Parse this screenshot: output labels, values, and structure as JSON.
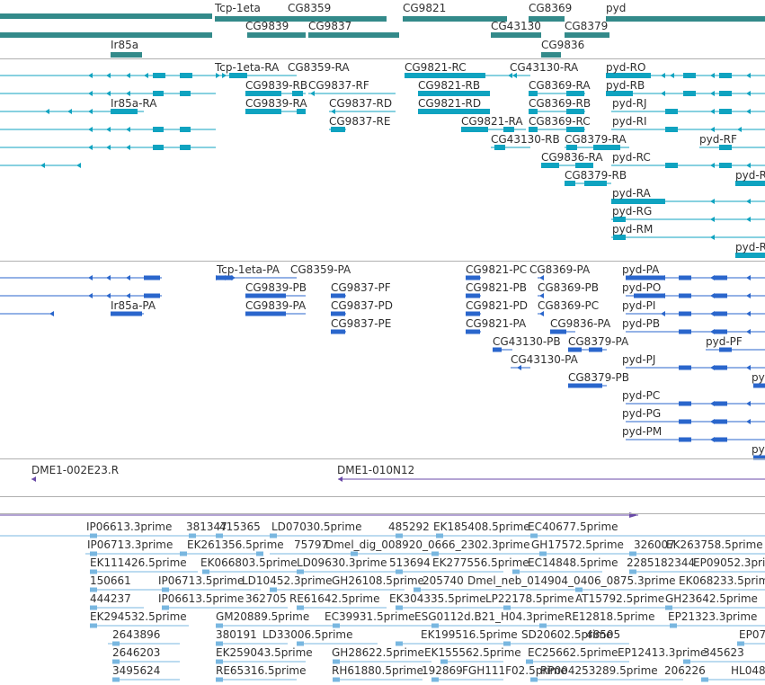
{
  "colors": {
    "gene_bar": "#338a8a",
    "transcript": "#0fa3c0",
    "protein": "#2a66cc",
    "clone": "#6a4aa8",
    "est": "#79b7e0",
    "separator": "#b0b0b0",
    "text": "#303030"
  },
  "genes": [
    {
      "name": "Tcp-1eta"
    },
    {
      "name": "CG8359"
    },
    {
      "name": "CG9821"
    },
    {
      "name": "CG8369"
    },
    {
      "name": "pyd"
    },
    {
      "name": "CG9839"
    },
    {
      "name": "CG9837"
    },
    {
      "name": "CG43130"
    },
    {
      "name": "CG8379"
    },
    {
      "name": "Ir85a"
    },
    {
      "name": "CG9836"
    }
  ],
  "transcripts": [
    {
      "name": "Tcp-1eta-RA"
    },
    {
      "name": "CG8359-RA"
    },
    {
      "name": "CG9821-RC"
    },
    {
      "name": "CG43130-RA"
    },
    {
      "name": "pyd-RO"
    },
    {
      "name": "CG9839-RB"
    },
    {
      "name": "CG9837-RF"
    },
    {
      "name": "CG9821-RB"
    },
    {
      "name": "CG8369-RA"
    },
    {
      "name": "pyd-RB"
    },
    {
      "name": "Ir85a-RA"
    },
    {
      "name": "CG9839-RA"
    },
    {
      "name": "CG9837-RD"
    },
    {
      "name": "CG9821-RD"
    },
    {
      "name": "CG8369-RB"
    },
    {
      "name": "pyd-RJ"
    },
    {
      "name": "CG9837-RE"
    },
    {
      "name": "CG9821-RA"
    },
    {
      "name": "CG8369-RC"
    },
    {
      "name": "pyd-RI"
    },
    {
      "name": "CG43130-RB"
    },
    {
      "name": "CG8379-RA"
    },
    {
      "name": "pyd-RF"
    },
    {
      "name": "CG9836-RA"
    },
    {
      "name": "pyd-RC"
    },
    {
      "name": "CG8379-RB"
    },
    {
      "name": "pyd-R"
    },
    {
      "name": "pyd-RA"
    },
    {
      "name": "pyd-RG"
    },
    {
      "name": "pyd-RM"
    },
    {
      "name": "pyd-R"
    }
  ],
  "proteins": [
    {
      "name": "Tcp-1eta-PA"
    },
    {
      "name": "CG8359-PA"
    },
    {
      "name": "CG9821-PC"
    },
    {
      "name": "CG8369-PA"
    },
    {
      "name": "pyd-PA"
    },
    {
      "name": "CG9839-PB"
    },
    {
      "name": "CG9837-PF"
    },
    {
      "name": "CG9821-PB"
    },
    {
      "name": "CG8369-PB"
    },
    {
      "name": "pyd-PO"
    },
    {
      "name": "Ir85a-PA"
    },
    {
      "name": "CG9839-PA"
    },
    {
      "name": "CG9837-PD"
    },
    {
      "name": "CG9821-PD"
    },
    {
      "name": "CG8369-PC"
    },
    {
      "name": "pyd-PI"
    },
    {
      "name": "CG9837-PE"
    },
    {
      "name": "CG9821-PA"
    },
    {
      "name": "CG9836-PA"
    },
    {
      "name": "pyd-PB"
    },
    {
      "name": "CG43130-PB"
    },
    {
      "name": "CG8379-PA"
    },
    {
      "name": "pyd-PF"
    },
    {
      "name": "CG43130-PA"
    },
    {
      "name": "pyd-PJ"
    },
    {
      "name": "CG8379-PB"
    },
    {
      "name": "pyd"
    },
    {
      "name": "pyd-PC"
    },
    {
      "name": "pyd-PG"
    },
    {
      "name": "pyd-PM"
    },
    {
      "name": "pyd"
    }
  ],
  "clones": [
    {
      "name": "DME1-002E23.R"
    },
    {
      "name": "DME1-010N12"
    }
  ],
  "ests": [
    {
      "name": "IP06613.3prime"
    },
    {
      "name": "381347"
    },
    {
      "name": "415365"
    },
    {
      "name": "LD07030.5prime"
    },
    {
      "name": "485292"
    },
    {
      "name": "EK185408.5prime"
    },
    {
      "name": "EC40677.5prime"
    },
    {
      "name": "IP06713.3prime"
    },
    {
      "name": "EK261356.5prime"
    },
    {
      "name": "75797"
    },
    {
      "name": "Dmel_dig_008920_0666_2302.3prime"
    },
    {
      "name": "GH17572.5prime"
    },
    {
      "name": "326007"
    },
    {
      "name": "EK263758.5prime"
    },
    {
      "name": "EK111426.5prime"
    },
    {
      "name": "EK066803.5prime"
    },
    {
      "name": "LD09630.3prime"
    },
    {
      "name": "513694"
    },
    {
      "name": "EK277556.5prime"
    },
    {
      "name": "EC14848.5prime"
    },
    {
      "name": "22851"
    },
    {
      "name": "82344"
    },
    {
      "name": "EP09052.3prime"
    },
    {
      "name": "150661"
    },
    {
      "name": "IP06713.5prime"
    },
    {
      "name": "LD10452.3prime"
    },
    {
      "name": "GH26108.5prime"
    },
    {
      "name": "205740"
    },
    {
      "name": "Dmel_neb_014904_0406_0875.3prime"
    },
    {
      "name": "EK068233.5prime"
    },
    {
      "name": "444237"
    },
    {
      "name": "IP06613.5prime"
    },
    {
      "name": "362705"
    },
    {
      "name": "RE61642.5prime"
    },
    {
      "name": "EK304335.5prime"
    },
    {
      "name": "LP22178.5prime"
    },
    {
      "name": "AT15792.5prime"
    },
    {
      "name": "GH23642.5prime"
    },
    {
      "name": "EK294532.5prime"
    },
    {
      "name": "GM20889.5prime"
    },
    {
      "name": "EC39931.5prime"
    },
    {
      "name": "ESG0112d.B21_H04.3prime"
    },
    {
      "name": "RE12818.5prime"
    },
    {
      "name": "EP21323.3prime"
    },
    {
      "name": "2643896"
    },
    {
      "name": "380191"
    },
    {
      "name": "LD33006.5prime"
    },
    {
      "name": "EK199516.5prime"
    },
    {
      "name": "SD20602.5prime"
    },
    {
      "name": "48505"
    },
    {
      "name": "EP07"
    },
    {
      "name": "2646203"
    },
    {
      "name": "EK259043.5prime"
    },
    {
      "name": "GH28622.5prime"
    },
    {
      "name": "EK155562.5prime"
    },
    {
      "name": "EC25662.5prime"
    },
    {
      "name": "EP12413.3prime"
    },
    {
      "name": "345623"
    },
    {
      "name": "3495624"
    },
    {
      "name": "RE65316.5prime"
    },
    {
      "name": "RH61880.5prime"
    },
    {
      "name": "192869"
    },
    {
      "name": "FGH111F02.5prime"
    },
    {
      "name": "RP004253289.5prime"
    },
    {
      "name": "206226"
    },
    {
      "name": "HL048"
    }
  ]
}
